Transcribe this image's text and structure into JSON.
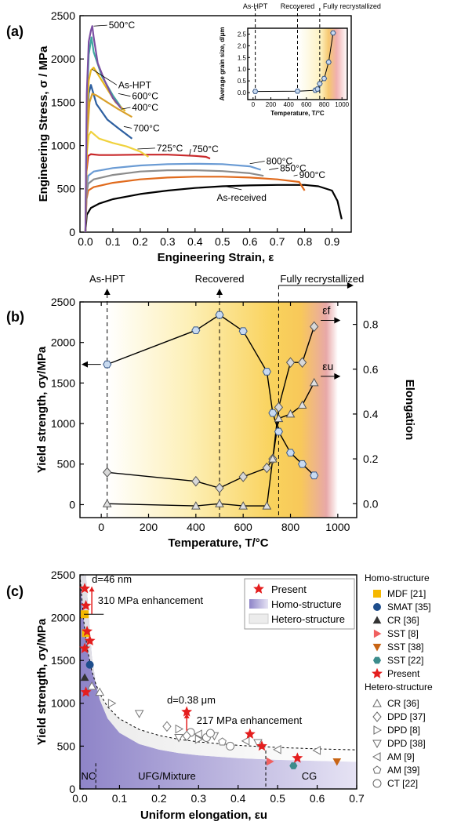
{
  "chart_data": [
    {
      "panel": "(a)",
      "type": "line",
      "xlabel": "Engineering Strain, ε",
      "ylabel": "Engineering Stress, σ / MPa",
      "xlim": [
        -0.02,
        0.97
      ],
      "ylim": [
        0,
        2500
      ],
      "xticks": [
        "0.0",
        "0.1",
        "0.2",
        "0.3",
        "0.4",
        "0.5",
        "0.6",
        "0.7",
        "0.8",
        "0.9"
      ],
      "yticks": [
        "0",
        "500",
        "1000",
        "1500",
        "2000",
        "2500"
      ],
      "series": [
        {
          "name": "500°C",
          "color": "#7b4fa3",
          "x": [
            0,
            0.005,
            0.012,
            0.02,
            0.025,
            0.03,
            0.045,
            0.07,
            0.1,
            0.13
          ],
          "y": [
            0,
            1600,
            2200,
            2330,
            2380,
            2250,
            1950,
            1750,
            1550,
            1430
          ]
        },
        {
          "name": "As-HPT",
          "color": "#e8b71c",
          "x": [
            0,
            0.005,
            0.012,
            0.02,
            0.03,
            0.05,
            0.08,
            0.11,
            0.145
          ],
          "y": [
            0,
            1300,
            1750,
            1870,
            1900,
            1800,
            1650,
            1500,
            1400
          ]
        },
        {
          "name": "600°C",
          "color": "#40a8a0",
          "x": [
            0,
            0.005,
            0.012,
            0.022,
            0.03,
            0.06,
            0.1,
            0.135
          ],
          "y": [
            0,
            1500,
            2050,
            2250,
            2080,
            1800,
            1580,
            1420
          ]
        },
        {
          "name": "400°C",
          "color": "#d9a02a",
          "x": [
            0,
            0.006,
            0.015,
            0.025,
            0.04,
            0.08,
            0.12,
            0.17
          ],
          "y": [
            0,
            1100,
            1500,
            1600,
            1580,
            1500,
            1420,
            1330
          ]
        },
        {
          "name": "700°C",
          "color": "#2d5fa0",
          "x": [
            0,
            0.005,
            0.012,
            0.02,
            0.04,
            0.08,
            0.12,
            0.17
          ],
          "y": [
            0,
            1200,
            1600,
            1700,
            1480,
            1300,
            1200,
            1080
          ]
        },
        {
          "name": "725°C",
          "color": "#f0d23e",
          "x": [
            0,
            0.005,
            0.012,
            0.02,
            0.05,
            0.1,
            0.15,
            0.2,
            0.23
          ],
          "y": [
            0,
            900,
            1120,
            1160,
            1080,
            1030,
            990,
            930,
            870
          ]
        },
        {
          "name": "750°C",
          "color": "#c8282a",
          "x": [
            0,
            0.004,
            0.01,
            0.02,
            0.05,
            0.1,
            0.2,
            0.3,
            0.4,
            0.44,
            0.455
          ],
          "y": [
            0,
            700,
            880,
            900,
            890,
            890,
            895,
            895,
            880,
            870,
            850
          ]
        },
        {
          "name": "800°C",
          "color": "#6a9bd4",
          "x": [
            0,
            0.004,
            0.01,
            0.03,
            0.1,
            0.2,
            0.3,
            0.4,
            0.5,
            0.6,
            0.64
          ],
          "y": [
            0,
            500,
            650,
            700,
            740,
            770,
            785,
            790,
            785,
            760,
            720
          ]
        },
        {
          "name": "850°C",
          "color": "#8c8c8c",
          "x": [
            0,
            0.004,
            0.01,
            0.03,
            0.1,
            0.2,
            0.3,
            0.4,
            0.5,
            0.6,
            0.65
          ],
          "y": [
            0,
            450,
            560,
            610,
            660,
            700,
            715,
            715,
            705,
            680,
            650
          ]
        },
        {
          "name": "900°C",
          "color": "#e06a1c",
          "x": [
            0,
            0.004,
            0.01,
            0.03,
            0.1,
            0.2,
            0.3,
            0.4,
            0.5,
            0.6,
            0.7,
            0.78,
            0.8
          ],
          "y": [
            0,
            380,
            480,
            520,
            570,
            610,
            630,
            640,
            640,
            630,
            610,
            580,
            480
          ]
        },
        {
          "name": "As-received",
          "color": "#000000",
          "x": [
            0,
            0.005,
            0.02,
            0.05,
            0.1,
            0.2,
            0.3,
            0.4,
            0.5,
            0.6,
            0.7,
            0.8,
            0.85,
            0.9,
            0.92,
            0.935
          ],
          "y": [
            0,
            200,
            280,
            330,
            380,
            440,
            480,
            510,
            530,
            540,
            545,
            545,
            530,
            480,
            360,
            150
          ]
        }
      ],
      "labels": [
        "500°C",
        "As-HPT",
        "600°C",
        "400°C",
        "700°C",
        "725°C",
        "750°C",
        "800°C",
        "850°C",
        "900°C",
        "As-received"
      ],
      "top_labels": [
        "As-HPT",
        "Recovered",
        "Fully recrystallized"
      ],
      "inset": {
        "xlabel": "Temperature, T/°C",
        "ylabel": "Average grain size, d/μm",
        "xlim": [
          -60,
          1060
        ],
        "ylim": [
          -0.3,
          2.75
        ],
        "xticks": [
          "0",
          "200",
          "400",
          "600",
          "800",
          "1000"
        ],
        "yticks": [
          "0.0",
          "0.5",
          "1.0",
          "1.5",
          "2.0",
          "2.5"
        ],
        "x": [
          25,
          500,
          700,
          725,
          750,
          800,
          850,
          900
        ],
        "y": [
          0.05,
          0.06,
          0.1,
          0.15,
          0.38,
          0.6,
          1.3,
          2.55
        ]
      }
    },
    {
      "panel": "(b)",
      "type": "line",
      "xlabel": "Temperature, T/°C",
      "ylabel": "Yield strength, σy/MPa",
      "ylabel2": "Elongation",
      "xlim": [
        -90,
        1080
      ],
      "ylim": [
        -160,
        2500
      ],
      "y2lim": [
        -0.062,
        0.9
      ],
      "xticks": [
        "0",
        "200",
        "400",
        "600",
        "800",
        "1000"
      ],
      "yticks": [
        "0",
        "500",
        "1000",
        "1500",
        "2000",
        "2500"
      ],
      "y2ticks": [
        "0.0",
        "0.2",
        "0.4",
        "0.6",
        "0.8"
      ],
      "top_labels": [
        "As-HPT",
        "Recovered",
        "Fully recrystallized"
      ],
      "strength": {
        "x": [
          25,
          400,
          500,
          600,
          700,
          725,
          750,
          800,
          850,
          900
        ],
        "y": [
          1730,
          2150,
          2340,
          2140,
          1640,
          1130,
          900,
          640,
          500,
          360
        ]
      },
      "elong_f": {
        "name": "εf",
        "x": [
          25,
          400,
          500,
          600,
          700,
          725,
          750,
          800,
          850,
          900
        ],
        "y": [
          0.14,
          0.1,
          0.07,
          0.12,
          0.16,
          0.2,
          0.43,
          0.63,
          0.63,
          0.79
        ]
      },
      "elong_u": {
        "name": "εu",
        "x": [
          25,
          400,
          500,
          600,
          700,
          725,
          750,
          800,
          850,
          900
        ],
        "y": [
          0.0,
          -0.01,
          0.0,
          -0.01,
          -0.01,
          0.2,
          0.38,
          0.4,
          0.44,
          0.54
        ]
      }
    },
    {
      "panel": "(c)",
      "type": "scatter",
      "xlabel": "Uniform elongation, εu",
      "ylabel": "Yield strength, σy/MPa",
      "xlim": [
        0,
        0.7
      ],
      "ylim": [
        0,
        2500
      ],
      "xticks": [
        "0.0",
        "0.1",
        "0.2",
        "0.3",
        "0.4",
        "0.5",
        "0.6",
        "0.7"
      ],
      "yticks": [
        "0",
        "500",
        "1000",
        "1500",
        "2000",
        "2500"
      ],
      "annotations": [
        "d=46 nm",
        "310 MPa enhancement",
        "d=0.38 μm",
        "217 MPa enhancement",
        "NC",
        "UFG/Mixture",
        "CG"
      ],
      "legend_inner": [
        "Present",
        "Homo-structure",
        "Hetero-structure"
      ],
      "legend_homo_title": "Homo-structure",
      "legend_hetero_title": "Hetero-structure",
      "legend_homo": [
        {
          "label": "MDF [21]",
          "color": "#f5b800",
          "marker": "square"
        },
        {
          "label": "SMAT [35]",
          "color": "#1f4e8c",
          "marker": "circle"
        },
        {
          "label": "CR [36]",
          "color": "#333333",
          "marker": "triangle-up"
        },
        {
          "label": "SST [8]",
          "color": "#f06060",
          "marker": "triangle-right"
        },
        {
          "label": "SST [38]",
          "color": "#c86414",
          "marker": "triangle-down"
        },
        {
          "label": "SST [22]",
          "color": "#3c8c8c",
          "marker": "hexagon"
        },
        {
          "label": "Present",
          "color": "#e41e1e",
          "marker": "star"
        }
      ],
      "legend_hetero": [
        {
          "label": "CR [36]",
          "marker": "triangle-up"
        },
        {
          "label": "DPD [37]",
          "marker": "diamond"
        },
        {
          "label": "DPD [8]",
          "marker": "triangle-right"
        },
        {
          "label": "DPD [38]",
          "marker": "triangle-down"
        },
        {
          "label": "AM [9]",
          "marker": "triangle-left"
        },
        {
          "label": "AM [39]",
          "marker": "pentagon"
        },
        {
          "label": "CT [22]",
          "marker": "circle"
        }
      ],
      "points": [
        {
          "series": "Present",
          "x": [
            0.012,
            0.015,
            0.018,
            0.025,
            0.012,
            0.015,
            0.27,
            0.43,
            0.46,
            0.55
          ],
          "y": [
            2340,
            2140,
            1840,
            1730,
            1640,
            1130,
            900,
            640,
            500,
            360
          ]
        },
        {
          "series": "MDF [21]",
          "x": [
            0.012,
            0.015
          ],
          "y": [
            2040,
            1820
          ]
        },
        {
          "series": "SMAT [35]",
          "x": [
            0.025
          ],
          "y": [
            1450
          ]
        },
        {
          "series": "CR [36]",
          "x": [
            0.012
          ],
          "y": [
            1300
          ]
        },
        {
          "series": "SST [8]",
          "x": [
            0.48
          ],
          "y": [
            320
          ]
        },
        {
          "series": "SST [38]",
          "x": [
            0.65
          ],
          "y": [
            320
          ]
        },
        {
          "series": "SST [22]",
          "x": [
            0.54
          ],
          "y": [
            270
          ]
        },
        {
          "series": "Hetero",
          "x": [
            0.05,
            0.08,
            0.15,
            0.22,
            0.25,
            0.28,
            0.3,
            0.32,
            0.34,
            0.36,
            0.38,
            0.42,
            0.45,
            0.5,
            0.6,
            0.03,
            0.25,
            0.33,
            0.27,
            0.3
          ],
          "y": [
            1130,
            1000,
            880,
            730,
            700,
            660,
            640,
            600,
            620,
            550,
            500,
            560,
            540,
            460,
            450,
            1200,
            600,
            650,
            620,
            580
          ]
        }
      ]
    }
  ]
}
